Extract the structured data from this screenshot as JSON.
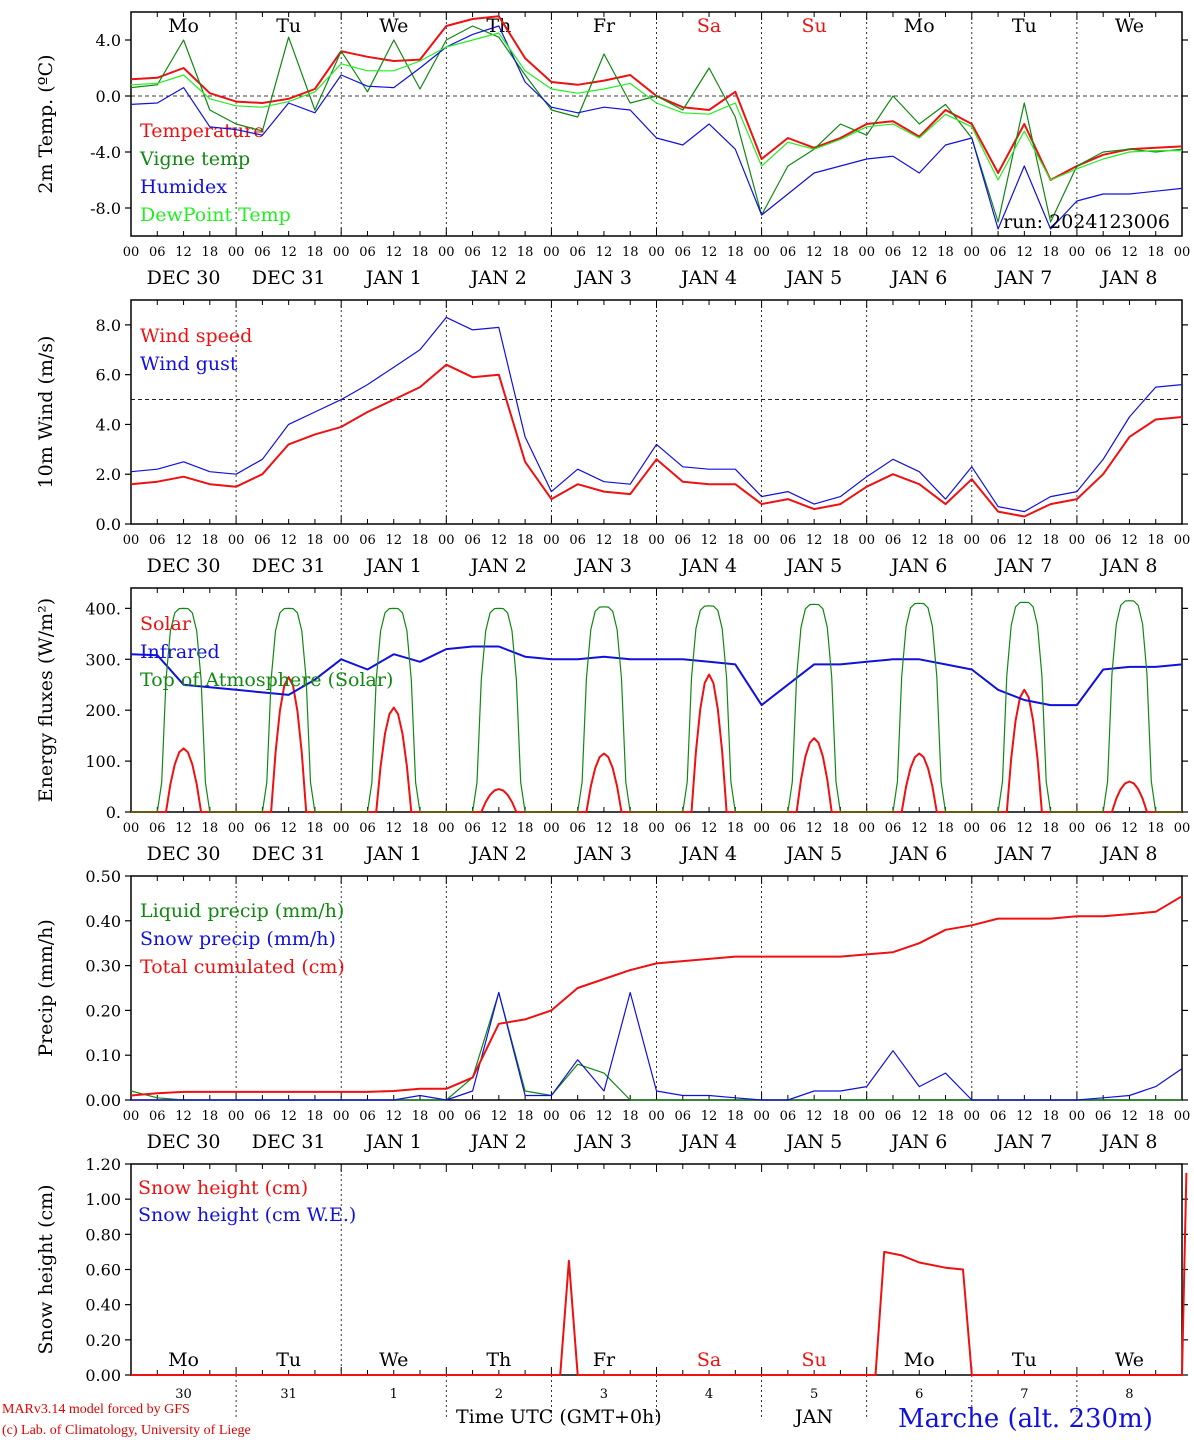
{
  "colors": {
    "red": "#ee1111",
    "green": "#118811",
    "blue": "#1111dd",
    "lightgreen": "#22ee22",
    "darkred": "#e00000"
  },
  "x_axis": {
    "hour_ticks": [
      "00",
      "06",
      "12",
      "18"
    ],
    "last_tick": "00",
    "dates": [
      "DEC 30",
      "DEC 31",
      "JAN  1",
      "JAN  2",
      "JAN  3",
      "JAN  4",
      "JAN  5",
      "JAN  6",
      "JAN  7",
      "JAN  8"
    ],
    "weekdays": [
      "Mo",
      "Tu",
      "We",
      "Th",
      "Fr",
      "Sa",
      "Su",
      "Mo",
      "Tu",
      "We"
    ],
    "weekday_colors": [
      "#000",
      "#000",
      "#000",
      "#000",
      "#000",
      "#ee1111",
      "#ee1111",
      "#000",
      "#000",
      "#000"
    ],
    "bottom_days": [
      "30",
      "31",
      "1",
      "2",
      "3",
      "4",
      "5",
      "6",
      "7",
      "8"
    ],
    "bottom_month": "JAN",
    "bottom_title": "Time UTC (GMT+0h)"
  },
  "footer": {
    "model": "MARv3.14 model forced by GFS",
    "lab": "(c) Lab. of Climatology, University of Liege",
    "station": "Marche (alt. 230m)"
  },
  "chart_data": [
    {
      "type": "line",
      "ylabel": "2m Temp. (ºC)",
      "ylim": [
        -10,
        6
      ],
      "yticks": [
        "4.0",
        "0.0",
        "-4.0",
        "-8.0"
      ],
      "ytick_values": [
        4,
        0,
        -4,
        -8
      ],
      "hline": 0,
      "annotation": "run: 2024123006",
      "x_hours": [
        0,
        6,
        12,
        18,
        24,
        30,
        36,
        42,
        48,
        54,
        60,
        66,
        72,
        78,
        84,
        90,
        96,
        102,
        108,
        114,
        120,
        126,
        132,
        138,
        144,
        150,
        156,
        162,
        168,
        174,
        180,
        186,
        192,
        198,
        204,
        210,
        216,
        222,
        228,
        234,
        240
      ],
      "series": [
        {
          "name": "Temperature",
          "color": "red",
          "values": [
            1.2,
            1.3,
            2.0,
            0.2,
            -0.4,
            -0.5,
            -0.2,
            0.5,
            3.2,
            2.8,
            2.5,
            2.6,
            5.0,
            5.5,
            5.7,
            2.7,
            1.0,
            0.8,
            1.1,
            1.5,
            0.0,
            -0.8,
            -1.0,
            0.3,
            -4.5,
            -3.0,
            -3.7,
            -3.0,
            -2.0,
            -1.8,
            -2.9,
            -1.0,
            -2.0,
            -5.5,
            -2.0,
            -6.0,
            -5.0,
            -4.2,
            -3.8,
            -3.7,
            -3.6
          ]
        },
        {
          "name": "Vigne temp",
          "color": "green",
          "values": [
            0.6,
            0.8,
            4.0,
            -1.0,
            -2.0,
            -2.5,
            4.2,
            -1.0,
            3.2,
            0.3,
            4.0,
            0.5,
            4.0,
            5.0,
            4.2,
            1.5,
            -1.0,
            -1.5,
            3.0,
            -0.5,
            0.0,
            -1.0,
            2.0,
            -1.5,
            -8.5,
            -5.0,
            -3.8,
            -2.0,
            -2.8,
            0.0,
            -2.0,
            -0.6,
            -3.0,
            -9.0,
            -0.5,
            -9.0,
            -5.0,
            -4.0,
            -3.8,
            -4.0,
            -3.8
          ]
        },
        {
          "name": "Humidex",
          "color": "blue",
          "values": [
            -0.6,
            -0.5,
            0.6,
            -2.2,
            -2.4,
            -2.8,
            -0.5,
            -1.2,
            1.5,
            0.7,
            0.6,
            2.0,
            3.5,
            4.4,
            5.0,
            1.0,
            -0.8,
            -1.2,
            -0.8,
            -1.0,
            -3.0,
            -3.5,
            -2.0,
            -3.8,
            -8.5,
            -7.0,
            -5.5,
            -5.0,
            -4.5,
            -4.3,
            -5.5,
            -3.5,
            -3.0,
            -9.5,
            -5.0,
            -9.5,
            -7.5,
            -7.0,
            -7.0,
            -6.8,
            -6.6
          ]
        },
        {
          "name": "DewPoint Temp",
          "color": "lightgreen",
          "values": [
            0.8,
            0.9,
            1.5,
            -0.2,
            -0.7,
            -0.8,
            -0.4,
            0.3,
            2.3,
            1.8,
            1.8,
            2.5,
            3.5,
            4.0,
            4.5,
            1.8,
            0.5,
            0.2,
            0.5,
            0.9,
            -0.5,
            -1.2,
            -1.3,
            -0.5,
            -5.0,
            -3.3,
            -3.8,
            -3.1,
            -2.2,
            -2.0,
            -3.0,
            -1.3,
            -2.2,
            -6.0,
            -2.5,
            -6.0,
            -5.2,
            -4.5,
            -4.0,
            -3.9,
            -3.9
          ]
        }
      ]
    },
    {
      "type": "line",
      "ylabel": "10m Wind (m/s)",
      "ylim": [
        0,
        9
      ],
      "yticks": [
        "8.0",
        "6.0",
        "4.0",
        "2.0",
        "0.0"
      ],
      "ytick_values": [
        8,
        6,
        4,
        2,
        0
      ],
      "hline": 5,
      "x_hours": [
        0,
        6,
        12,
        18,
        24,
        30,
        36,
        42,
        48,
        54,
        60,
        66,
        72,
        78,
        84,
        90,
        96,
        102,
        108,
        114,
        120,
        126,
        132,
        138,
        144,
        150,
        156,
        162,
        168,
        174,
        180,
        186,
        192,
        198,
        204,
        210,
        216,
        222,
        228,
        234,
        240
      ],
      "series": [
        {
          "name": "Wind speed",
          "color": "red",
          "values": [
            1.6,
            1.7,
            1.9,
            1.6,
            1.5,
            2.0,
            3.2,
            3.6,
            3.9,
            4.5,
            5.0,
            5.5,
            6.4,
            5.9,
            6.0,
            2.5,
            1.0,
            1.6,
            1.3,
            1.2,
            2.6,
            1.7,
            1.6,
            1.6,
            0.8,
            1.0,
            0.6,
            0.8,
            1.5,
            2.0,
            1.6,
            0.8,
            1.8,
            0.5,
            0.3,
            0.8,
            1.0,
            2.0,
            3.5,
            4.2,
            4.3
          ]
        },
        {
          "name": "Wind gust",
          "color": "blue",
          "values": [
            2.1,
            2.2,
            2.5,
            2.1,
            2.0,
            2.6,
            4.0,
            4.5,
            5.0,
            5.6,
            6.3,
            7.0,
            8.3,
            7.8,
            7.9,
            3.5,
            1.3,
            2.2,
            1.7,
            1.6,
            3.2,
            2.3,
            2.2,
            2.2,
            1.1,
            1.3,
            0.8,
            1.1,
            1.9,
            2.6,
            2.1,
            1.0,
            2.3,
            0.7,
            0.5,
            1.1,
            1.3,
            2.6,
            4.3,
            5.5,
            5.6
          ]
        }
      ]
    },
    {
      "type": "line",
      "ylabel": "Energy fluxes (W/m²)",
      "ylim": [
        0,
        440
      ],
      "yticks": [
        "400.",
        "300.",
        "200.",
        "100.",
        "0."
      ],
      "ytick_values": [
        400,
        300,
        200,
        100,
        0
      ],
      "x_hours": [
        0,
        6,
        12,
        18,
        24,
        30,
        36,
        42,
        48,
        54,
        60,
        66,
        72,
        78,
        84,
        90,
        96,
        102,
        108,
        114,
        120,
        126,
        132,
        138,
        144,
        150,
        156,
        162,
        168,
        174,
        180,
        186,
        192,
        198,
        204,
        210,
        216,
        222,
        228,
        234,
        240
      ],
      "series": [
        {
          "name": "Solar",
          "color": "red",
          "daily_peaks": [
            125,
            265,
            205,
            45,
            115,
            270,
            145,
            115,
            240,
            60
          ]
        },
        {
          "name": "Infrared",
          "color": "blue",
          "values": [
            310,
            308,
            250,
            245,
            240,
            235,
            230,
            260,
            300,
            280,
            310,
            295,
            320,
            325,
            325,
            305,
            300,
            300,
            305,
            300,
            300,
            300,
            295,
            290,
            210,
            250,
            290,
            290,
            295,
            300,
            300,
            290,
            280,
            240,
            220,
            210,
            210,
            280,
            285,
            285,
            290
          ]
        },
        {
          "name": "Top of Atmosphere (Solar)",
          "color": "green",
          "daily_peaks": [
            400,
            400,
            400,
            400,
            403,
            405,
            408,
            410,
            412,
            415
          ]
        }
      ]
    },
    {
      "type": "line",
      "ylabel": "Precip (mm/h)",
      "ylim": [
        0,
        0.5
      ],
      "yticks": [
        "0.50",
        "0.40",
        "0.30",
        "0.20",
        "0.10",
        "0.00"
      ],
      "ytick_values": [
        0.5,
        0.4,
        0.3,
        0.2,
        0.1,
        0
      ],
      "x_hours": [
        0,
        6,
        12,
        18,
        24,
        30,
        36,
        42,
        48,
        54,
        60,
        66,
        72,
        78,
        84,
        90,
        96,
        102,
        108,
        114,
        120,
        126,
        132,
        138,
        144,
        150,
        156,
        162,
        168,
        174,
        180,
        186,
        192,
        198,
        204,
        210,
        216,
        222,
        228,
        234,
        240
      ],
      "series": [
        {
          "name": "Liquid precip (mm/h)",
          "color": "green",
          "values": [
            0.02,
            0.005,
            0,
            0,
            0,
            0,
            0,
            0,
            0,
            0,
            0,
            0,
            0,
            0.05,
            0.24,
            0.02,
            0.01,
            0.08,
            0.06,
            0,
            0,
            0,
            0,
            0,
            0,
            0,
            0,
            0,
            0,
            0,
            0,
            0,
            0,
            0,
            0,
            0,
            0,
            0,
            0,
            0,
            0
          ]
        },
        {
          "name": "Snow precip (mm/h)",
          "color": "blue",
          "values": [
            0,
            0,
            0,
            0,
            0,
            0,
            0,
            0,
            0,
            0,
            0,
            0.01,
            0,
            0.02,
            0.24,
            0.01,
            0.01,
            0.09,
            0.02,
            0.24,
            0.02,
            0.01,
            0.01,
            0.005,
            0,
            0,
            0.02,
            0.02,
            0.03,
            0.11,
            0.03,
            0.06,
            0,
            0,
            0,
            0,
            0,
            0.005,
            0.01,
            0.03,
            0.07
          ]
        },
        {
          "name": "Total cumulated (cm)",
          "color": "red",
          "values": [
            0.01,
            0.015,
            0.018,
            0.018,
            0.018,
            0.018,
            0.018,
            0.018,
            0.018,
            0.018,
            0.02,
            0.025,
            0.025,
            0.05,
            0.17,
            0.18,
            0.2,
            0.25,
            0.27,
            0.29,
            0.305,
            0.31,
            0.315,
            0.32,
            0.32,
            0.32,
            0.32,
            0.32,
            0.325,
            0.33,
            0.35,
            0.38,
            0.39,
            0.405,
            0.405,
            0.405,
            0.41,
            0.41,
            0.415,
            0.42,
            0.455
          ]
        }
      ]
    },
    {
      "type": "line",
      "ylabel": "Snow height (cm)",
      "ylim": [
        0,
        1.2
      ],
      "yticks": [
        "1.20",
        "1.00",
        "0.80",
        "0.60",
        "0.40",
        "0.20",
        "0.00"
      ],
      "ytick_values": [
        1.2,
        1.0,
        0.8,
        0.6,
        0.4,
        0.2,
        0
      ],
      "x_hours": [
        0,
        96,
        98,
        100,
        102,
        170,
        172,
        176,
        180,
        186,
        190,
        192,
        240,
        241
      ],
      "series": [
        {
          "name": "Snow height (cm)",
          "color": "red",
          "values": [
            0,
            0,
            0,
            0.65,
            0,
            0,
            0.7,
            0.68,
            0.64,
            0.61,
            0.6,
            0,
            0,
            1.15
          ]
        },
        {
          "name": "Snow height (cm W.E.)",
          "color": "blue",
          "values": []
        }
      ]
    }
  ]
}
